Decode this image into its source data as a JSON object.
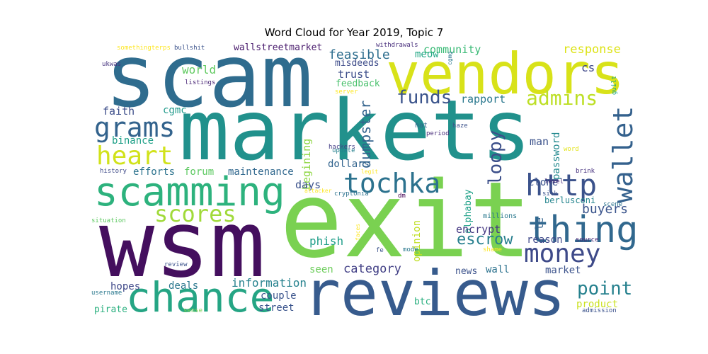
{
  "chart_data": {
    "type": "wordcloud",
    "title": "Word Cloud for Year 2019, Topic 7",
    "words": [
      {
        "text": "scam",
        "color": "#2f6c8e"
      },
      {
        "text": "markets",
        "color": "#21918c"
      },
      {
        "text": "exit",
        "color": "#7ad151"
      },
      {
        "text": "wsm",
        "color": "#440f5e"
      },
      {
        "text": "vendors",
        "color": "#d8e219"
      },
      {
        "text": "reviews",
        "color": "#375b8d"
      },
      {
        "text": "scamming",
        "color": "#2db27d"
      },
      {
        "text": "chance",
        "color": "#25a584"
      },
      {
        "text": "thing",
        "color": "#31688e"
      },
      {
        "text": "tochka",
        "color": "#2c728e"
      },
      {
        "text": "http",
        "color": "#3b528b"
      },
      {
        "text": "wallet",
        "color": "#34618d"
      },
      {
        "text": "money",
        "color": "#3e4a89"
      },
      {
        "text": "heart",
        "color": "#d1e21b"
      },
      {
        "text": "grams",
        "color": "#33638d"
      },
      {
        "text": "scores",
        "color": "#a0da39"
      },
      {
        "text": "point",
        "color": "#26818e"
      },
      {
        "text": "admins",
        "color": "#bddf26"
      },
      {
        "text": "funds",
        "color": "#3a538b"
      },
      {
        "text": "loopy",
        "color": "#3c4f8a"
      },
      {
        "text": "dumpster",
        "color": "#33638d"
      },
      {
        "text": "category",
        "color": "#424086"
      },
      {
        "text": "escrow",
        "color": "#277f8e"
      },
      {
        "text": "buyers",
        "color": "#3a548c"
      },
      {
        "text": "response",
        "color": "#dde318"
      },
      {
        "text": "community",
        "color": "#3aba76"
      },
      {
        "text": "rapport",
        "color": "#2a788e"
      },
      {
        "text": "feasible",
        "color": "#2e6e8e"
      },
      {
        "text": "wallstreetmarket",
        "color": "#481a6c"
      },
      {
        "text": "meow",
        "color": "#22a785"
      },
      {
        "text": "trust",
        "color": "#3d4e8a"
      },
      {
        "text": "misdeeds",
        "color": "#3e4c8a"
      },
      {
        "text": "feedback",
        "color": "#4ac16d"
      },
      {
        "text": "world",
        "color": "#60ca60"
      },
      {
        "text": "cs",
        "color": "#3f4889"
      },
      {
        "text": "faith",
        "color": "#3d4e8a"
      },
      {
        "text": "cgmc",
        "color": "#1f998a"
      },
      {
        "text": "binance",
        "color": "#1fa088"
      },
      {
        "text": "password",
        "color": "#23898e"
      },
      {
        "text": "man",
        "color": "#3b528b"
      },
      {
        "text": "efforts",
        "color": "#2c738e"
      },
      {
        "text": "forum",
        "color": "#5ec962"
      },
      {
        "text": "maintenance",
        "color": "#31688e"
      },
      {
        "text": "begining",
        "color": "#8fd744"
      },
      {
        "text": "dollars",
        "color": "#32648e"
      },
      {
        "text": "days",
        "color": "#3b528b"
      },
      {
        "text": "clone",
        "color": "#3b528b"
      },
      {
        "text": "alphabay",
        "color": "#1fa188"
      },
      {
        "text": "encrypt",
        "color": "#453882"
      },
      {
        "text": "le",
        "color": "#33638d"
      },
      {
        "text": "reason",
        "color": "#3e4989"
      },
      {
        "text": "phish",
        "color": "#1f9e89"
      },
      {
        "text": "opinion",
        "color": "#c0df25"
      },
      {
        "text": "seen",
        "color": "#6ccd5a"
      },
      {
        "text": "wall",
        "color": "#2c728e"
      },
      {
        "text": "market",
        "color": "#3b528b"
      },
      {
        "text": "news",
        "color": "#3b528b"
      },
      {
        "text": "information",
        "color": "#26828e"
      },
      {
        "text": "hopes",
        "color": "#3f4889"
      },
      {
        "text": "deals",
        "color": "#2a778e"
      },
      {
        "text": "couple",
        "color": "#3a548c"
      },
      {
        "text": "street",
        "color": "#3a548c"
      },
      {
        "text": "product",
        "color": "#cae11f"
      },
      {
        "text": "btc",
        "color": "#29af7f"
      },
      {
        "text": "pirate",
        "color": "#2ab07f"
      },
      {
        "text": "berlusconi",
        "color": "#25858e"
      },
      {
        "text": "millions",
        "color": "#2a788e"
      },
      {
        "text": "somethingterps",
        "color": "#fde725"
      },
      {
        "text": "bullshit",
        "color": "#3b528b"
      },
      {
        "text": "withdrawals",
        "color": "#472d7b"
      },
      {
        "text": "ukwas",
        "color": "#46337e"
      },
      {
        "text": "listings",
        "color": "#482475"
      },
      {
        "text": "server",
        "color": "#fde725"
      },
      {
        "text": "cgmg",
        "color": "#2a788e"
      },
      {
        "text": "guilt",
        "color": "#22a884"
      },
      {
        "text": "hat",
        "color": "#33638d"
      },
      {
        "text": "period",
        "color": "#472c7a"
      },
      {
        "text": "haze",
        "color": "#3b528b"
      },
      {
        "text": "hackers",
        "color": "#433e85"
      },
      {
        "text": "update",
        "color": "#26818e"
      },
      {
        "text": "word",
        "color": "#e2e418"
      },
      {
        "text": "history",
        "color": "#3e4a89"
      },
      {
        "text": "legit",
        "color": "#fde725"
      },
      {
        "text": "brink",
        "color": "#46307e"
      },
      {
        "text": "level",
        "color": "#482878"
      },
      {
        "text": "silk",
        "color": "#3b528b"
      },
      {
        "text": "attacker",
        "color": "#fde725"
      },
      {
        "text": "cryptonia",
        "color": "#2c728e"
      },
      {
        "text": "dm",
        "color": "#440154"
      },
      {
        "text": "scene",
        "color": "#2c728e"
      },
      {
        "text": "situation",
        "color": "#5ec962"
      },
      {
        "text": "faces",
        "color": "#fde725"
      },
      {
        "text": "source",
        "color": "#482677"
      },
      {
        "text": "fe",
        "color": "#3b528b"
      },
      {
        "text": "mode",
        "color": "#2a788e"
      },
      {
        "text": "shame",
        "color": "#fde725"
      },
      {
        "text": "review",
        "color": "#3b528b"
      },
      {
        "text": "username",
        "color": "#2a788e"
      },
      {
        "text": "sense",
        "color": "#7ad151"
      },
      {
        "text": "admission",
        "color": "#3b528b"
      }
    ]
  }
}
